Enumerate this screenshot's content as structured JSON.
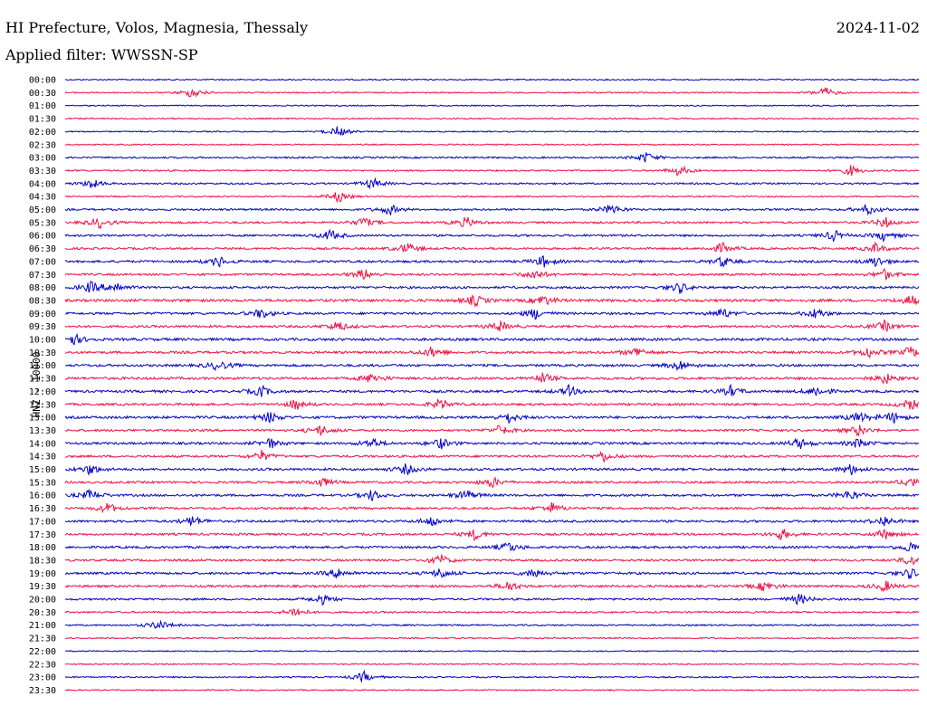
{
  "header": {
    "title": "HI Prefecture, Volos, Magnesia, Thessaly",
    "date": "2024-11-02",
    "filter": "Applied filter: WWSSN-SP"
  },
  "chart_data": {
    "type": "line",
    "title": "HI Prefecture, Volos, Magnesia, Thessaly",
    "ylabel": "HNZ - 10000",
    "xlabel": "",
    "grid": false,
    "colors": {
      "even": "#0000cc",
      "odd": "#ee1144"
    },
    "rows": [
      {
        "label": "00:00",
        "activity": 0.15,
        "events": []
      },
      {
        "label": "00:30",
        "activity": 0.15,
        "events": [
          0.15,
          0.89
        ]
      },
      {
        "label": "01:00",
        "activity": 0.12,
        "events": []
      },
      {
        "label": "01:30",
        "activity": 0.18,
        "events": []
      },
      {
        "label": "02:00",
        "activity": 0.12,
        "events": [
          0.32
        ]
      },
      {
        "label": "02:30",
        "activity": 0.15,
        "events": []
      },
      {
        "label": "03:00",
        "activity": 0.35,
        "events": [
          0.68
        ]
      },
      {
        "label": "03:30",
        "activity": 0.25,
        "events": [
          0.72,
          0.92
        ]
      },
      {
        "label": "04:00",
        "activity": 0.35,
        "events": [
          0.03,
          0.36
        ]
      },
      {
        "label": "04:30",
        "activity": 0.2,
        "events": [
          0.32
        ]
      },
      {
        "label": "05:00",
        "activity": 0.45,
        "events": [
          0.38,
          0.64,
          0.94
        ]
      },
      {
        "label": "05:30",
        "activity": 0.5,
        "events": [
          0.04,
          0.35,
          0.47,
          0.96
        ]
      },
      {
        "label": "06:00",
        "activity": 0.5,
        "events": [
          0.31,
          0.9,
          0.96
        ]
      },
      {
        "label": "06:30",
        "activity": 0.5,
        "events": [
          0.4,
          0.77,
          0.95
        ]
      },
      {
        "label": "07:00",
        "activity": 0.6,
        "events": [
          0.18,
          0.56,
          0.77,
          0.95
        ]
      },
      {
        "label": "07:30",
        "activity": 0.55,
        "events": [
          0.35,
          0.55,
          0.96
        ]
      },
      {
        "label": "08:00",
        "activity": 0.6,
        "events": [
          0.03,
          0.06,
          0.72
        ]
      },
      {
        "label": "08:30",
        "activity": 0.75,
        "events": [
          0.48,
          0.56,
          0.99
        ]
      },
      {
        "label": "09:00",
        "activity": 0.6,
        "events": [
          0.23,
          0.55,
          0.77,
          0.88
        ]
      },
      {
        "label": "09:30",
        "activity": 0.6,
        "events": [
          0.32,
          0.51,
          0.96
        ]
      },
      {
        "label": "10:00",
        "activity": 0.75,
        "events": [
          0.01
        ]
      },
      {
        "label": "10:30",
        "activity": 0.65,
        "events": [
          0.43,
          0.67,
          0.94,
          0.99
        ]
      },
      {
        "label": "11:00",
        "activity": 0.65,
        "events": [
          0.18,
          0.72
        ]
      },
      {
        "label": "11:30",
        "activity": 0.7,
        "events": [
          0.36,
          0.56,
          0.96
        ]
      },
      {
        "label": "12:00",
        "activity": 0.65,
        "events": [
          0.23,
          0.59,
          0.78,
          0.88
        ]
      },
      {
        "label": "12:30",
        "activity": 0.6,
        "events": [
          0.27,
          0.44,
          0.99
        ]
      },
      {
        "label": "13:00",
        "activity": 0.7,
        "events": [
          0.24,
          0.52,
          0.93,
          0.97
        ]
      },
      {
        "label": "13:30",
        "activity": 0.55,
        "events": [
          0.3,
          0.51,
          0.93
        ]
      },
      {
        "label": "14:00",
        "activity": 0.6,
        "events": [
          0.24,
          0.36,
          0.44,
          0.86,
          0.93
        ]
      },
      {
        "label": "14:30",
        "activity": 0.55,
        "events": [
          0.23,
          0.63
        ]
      },
      {
        "label": "15:00",
        "activity": 0.65,
        "events": [
          0.03,
          0.4,
          0.92
        ]
      },
      {
        "label": "15:30",
        "activity": 0.55,
        "events": [
          0.3,
          0.5,
          0.99
        ]
      },
      {
        "label": "16:00",
        "activity": 0.6,
        "events": [
          0.03,
          0.36,
          0.47,
          0.92
        ]
      },
      {
        "label": "16:30",
        "activity": 0.55,
        "events": [
          0.05,
          0.57
        ]
      },
      {
        "label": "17:00",
        "activity": 0.6,
        "events": [
          0.15,
          0.43,
          0.96
        ]
      },
      {
        "label": "17:30",
        "activity": 0.55,
        "events": [
          0.48,
          0.84,
          0.96
        ]
      },
      {
        "label": "18:00",
        "activity": 0.6,
        "events": [
          0.52,
          0.99
        ]
      },
      {
        "label": "18:30",
        "activity": 0.55,
        "events": [
          0.44,
          0.99
        ]
      },
      {
        "label": "19:00",
        "activity": 0.6,
        "events": [
          0.32,
          0.44,
          0.55,
          0.99
        ]
      },
      {
        "label": "19:30",
        "activity": 0.6,
        "events": [
          0.52,
          0.82,
          0.96
        ]
      },
      {
        "label": "20:00",
        "activity": 0.45,
        "events": [
          0.3,
          0.86
        ]
      },
      {
        "label": "20:30",
        "activity": 0.35,
        "events": [
          0.27
        ]
      },
      {
        "label": "21:00",
        "activity": 0.3,
        "events": [
          0.11
        ]
      },
      {
        "label": "21:30",
        "activity": 0.15,
        "events": []
      },
      {
        "label": "22:00",
        "activity": 0.1,
        "events": []
      },
      {
        "label": "22:30",
        "activity": 0.15,
        "events": []
      },
      {
        "label": "23:00",
        "activity": 0.2,
        "events": [
          0.35
        ]
      },
      {
        "label": "23:30",
        "activity": 0.15,
        "events": []
      }
    ]
  }
}
